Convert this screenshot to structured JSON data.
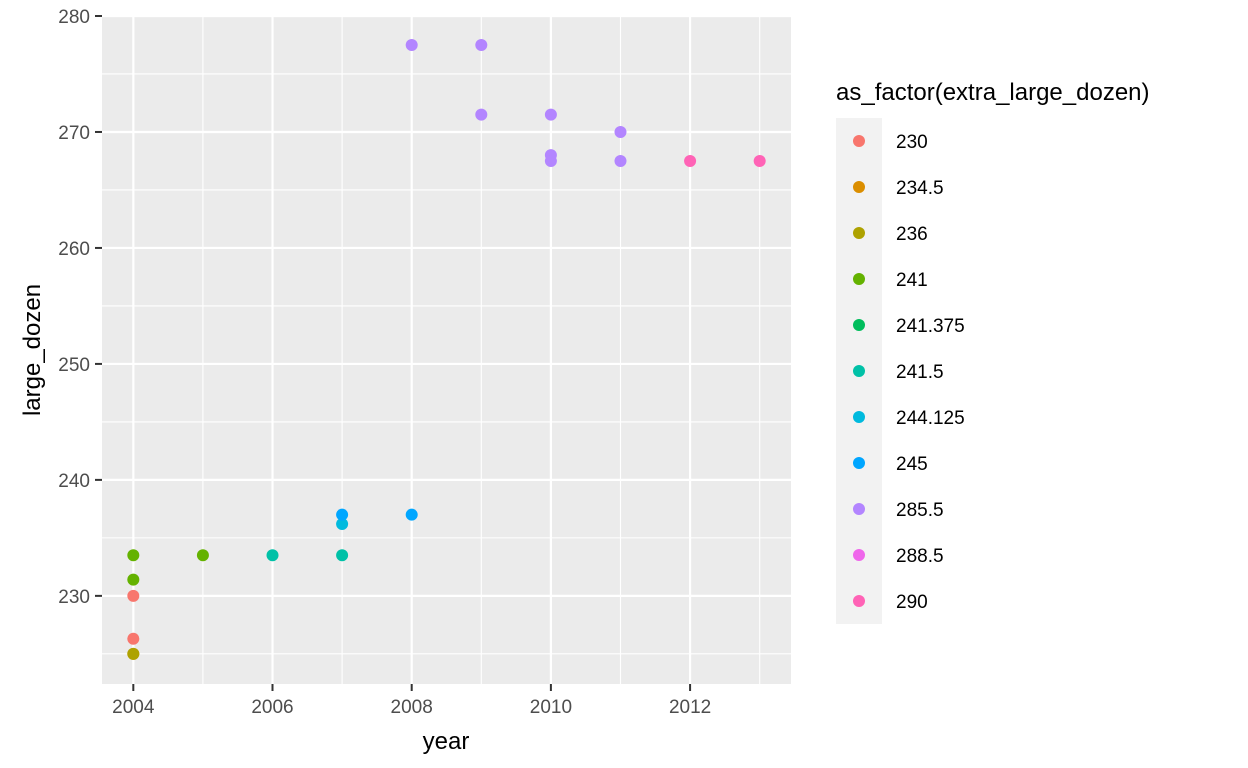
{
  "chart_data": {
    "type": "scatter",
    "xlabel": "year",
    "ylabel": "large_dozen",
    "xlim": [
      2003.55,
      2013.45
    ],
    "ylim": [
      222.4,
      280
    ],
    "xticks": [
      2004,
      2006,
      2008,
      2010,
      2012
    ],
    "yticks": [
      230,
      240,
      250,
      260,
      270,
      280
    ],
    "grid": true,
    "legend": {
      "title": "as_factor(extra_large_dozen)",
      "placement": "right"
    },
    "series": [
      {
        "name": "230",
        "color": "#F8766D",
        "points": [
          [
            2004,
            230
          ],
          [
            2004,
            226.3
          ]
        ]
      },
      {
        "name": "234.5",
        "color": "#DB8E00",
        "points": [
          [
            2004,
            225
          ]
        ]
      },
      {
        "name": "236",
        "color": "#AEA200",
        "points": [
          [
            2004,
            225
          ]
        ]
      },
      {
        "name": "241",
        "color": "#64B200",
        "points": [
          [
            2004,
            233.5
          ],
          [
            2004,
            231.4
          ],
          [
            2005,
            233.5
          ]
        ]
      },
      {
        "name": "241.375",
        "color": "#00BD5C",
        "points": []
      },
      {
        "name": "241.5",
        "color": "#00C1A7",
        "points": [
          [
            2006,
            233.5
          ],
          [
            2007,
            233.5
          ]
        ]
      },
      {
        "name": "244.125",
        "color": "#00BADE",
        "points": [
          [
            2007,
            236.2
          ]
        ]
      },
      {
        "name": "245",
        "color": "#00A6FF",
        "points": [
          [
            2007,
            237
          ],
          [
            2008,
            237
          ]
        ]
      },
      {
        "name": "285.5",
        "color": "#B385FF",
        "points": [
          [
            2008,
            277.5
          ],
          [
            2009,
            277.5
          ],
          [
            2009,
            271.5
          ],
          [
            2010,
            271.5
          ],
          [
            2010,
            268
          ],
          [
            2010,
            267.5
          ],
          [
            2011,
            270
          ],
          [
            2011,
            267.5
          ]
        ]
      },
      {
        "name": "288.5",
        "color": "#EF67EB",
        "points": []
      },
      {
        "name": "290",
        "color": "#FF63B6",
        "points": [
          [
            2012,
            267.5
          ],
          [
            2013,
            267.5
          ]
        ]
      }
    ]
  }
}
